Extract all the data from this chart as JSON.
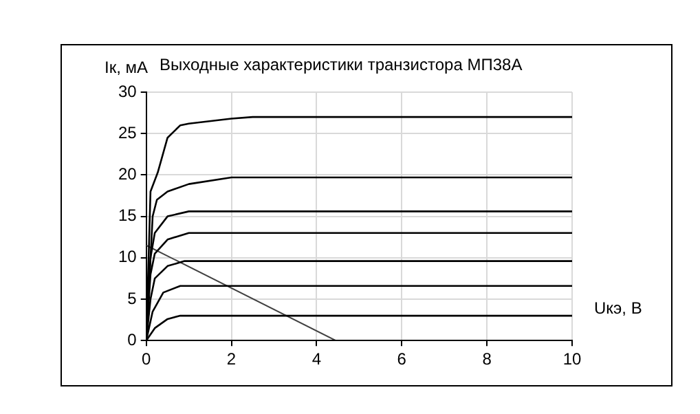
{
  "chart_data": {
    "type": "line",
    "title": "Выходные характеристики транзистора МП38А",
    "xlabel": "Uкэ, В",
    "ylabel": "Iк, мА",
    "xlim": [
      0,
      10
    ],
    "xticks": [
      0,
      2,
      4,
      6,
      8,
      10
    ],
    "ylim": [
      0,
      30
    ],
    "yticks": [
      0,
      5,
      10,
      15,
      20,
      25,
      30
    ],
    "grid": true,
    "legend": false,
    "marker": "none",
    "line_style": "solid",
    "series": [
      {
        "color": "#000000",
        "x": [
          0,
          10
        ],
        "values": [
          0,
          0
        ]
      },
      {
        "color": "#000000",
        "x": [
          0,
          0.2,
          0.5,
          0.8,
          10
        ],
        "values": [
          0,
          1.5,
          2.6,
          3,
          3
        ]
      },
      {
        "color": "#000000",
        "x": [
          0,
          0.15,
          0.4,
          0.8,
          10
        ],
        "values": [
          0,
          3.5,
          5.8,
          6.6,
          6.6
        ]
      },
      {
        "color": "#000000",
        "x": [
          0,
          0.1,
          0.2,
          0.5,
          0.9,
          10
        ],
        "values": [
          0,
          5,
          7.5,
          9,
          9.6,
          9.6
        ]
      },
      {
        "color": "#000000",
        "x": [
          0,
          0.1,
          0.2,
          0.5,
          1,
          10
        ],
        "values": [
          0,
          8,
          10.5,
          12.2,
          13,
          13
        ]
      },
      {
        "color": "#000000",
        "x": [
          0,
          0.1,
          0.2,
          0.5,
          1,
          10
        ],
        "values": [
          0,
          10,
          13,
          15,
          15.6,
          15.6
        ]
      },
      {
        "color": "#000000",
        "x": [
          0,
          0.15,
          0.25,
          0.5,
          1,
          2,
          10
        ],
        "values": [
          0,
          15,
          17,
          18,
          18.9,
          19.7,
          19.7
        ]
      },
      {
        "color": "#000000",
        "x": [
          0,
          0.1,
          0.27,
          0.5,
          0.8,
          1,
          2,
          2.5,
          10
        ],
        "values": [
          0,
          18,
          20.3,
          24.5,
          26,
          26.2,
          26.8,
          27,
          27
        ]
      },
      {
        "color": "#404040",
        "x": [
          0,
          4.45
        ],
        "values": [
          11.5,
          0
        ]
      }
    ]
  }
}
